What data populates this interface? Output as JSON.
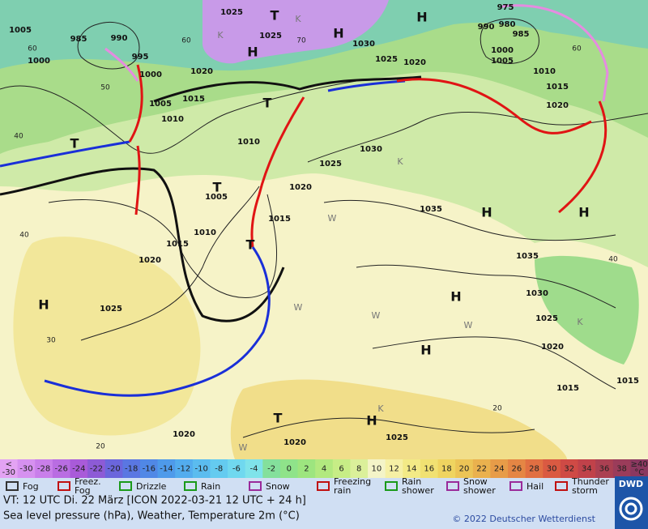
{
  "map": {
    "pressure_labels": [
      "1005",
      "985",
      "990",
      "995",
      "1000",
      "1000",
      "1005",
      "1010",
      "1015",
      "1020",
      "1025",
      "1025",
      "1030",
      "1025",
      "1020",
      "990",
      "980",
      "985",
      "975",
      "1000",
      "1005",
      "1010",
      "1015",
      "1020",
      "1030",
      "1025",
      "1020",
      "1015",
      "1010",
      "1005",
      "1010",
      "1015",
      "1020",
      "1025",
      "1035",
      "1035",
      "1030",
      "1025",
      "1020",
      "1015",
      "1015",
      "1025",
      "1020",
      "1020"
    ],
    "temperature_labels": [
      "40",
      "30",
      "20",
      "40",
      "50",
      "60",
      "60",
      "70",
      "60",
      "40",
      "20"
    ],
    "systems": [
      "H",
      "H",
      "H",
      "H",
      "H",
      "H",
      "H",
      "H",
      "H",
      "T",
      "T",
      "T",
      "T",
      "T",
      "T"
    ],
    "air_mass_letters": [
      "K",
      "K",
      "K",
      "K",
      "W",
      "W",
      "W",
      "W",
      "W",
      "K"
    ]
  },
  "colorbar": {
    "low_end": [
      "<",
      "-30"
    ],
    "values": [
      -30,
      -28,
      -26,
      -24,
      -22,
      -20,
      -18,
      -16,
      -14,
      -12,
      -10,
      -8,
      -6,
      -4,
      -2,
      0,
      2,
      4,
      6,
      8,
      10,
      12,
      14,
      16,
      18,
      20,
      22,
      24,
      26,
      28,
      30,
      32,
      34,
      36,
      38
    ],
    "high_end": [
      "≥40",
      "°C"
    ],
    "colors": [
      "#e3a3f3",
      "#d691f0",
      "#c97fea",
      "#b96de2",
      "#a95bd9",
      "#8d5bd6",
      "#6b66dc",
      "#5a77e2",
      "#5088e6",
      "#4e9aea",
      "#53acee",
      "#5bbcef",
      "#64cbf0",
      "#70d8ef",
      "#7fe3ea",
      "#84e09c",
      "#8fe38a",
      "#9de57f",
      "#b2e97f",
      "#c7ed86",
      "#dbf09a",
      "#f4f4c8",
      "#f6f0a5",
      "#f3ea86",
      "#f1e172",
      "#efd460",
      "#ecc456",
      "#eab14e",
      "#e79c48",
      "#e58644",
      "#e16f42",
      "#da5a42",
      "#cf4a45",
      "#c0424a",
      "#ab4052",
      "#9b3c5a",
      "#8b3860"
    ]
  },
  "legend": [
    "Fog",
    "Freez. Fog",
    "Drizzle",
    "Rain",
    "Snow",
    "Freezing rain",
    "Rain shower",
    "Snow shower",
    "Hail",
    "Thunder storm"
  ],
  "footer": {
    "valid_time": "VT: 12 UTC Di.  22 März [ICON 2022-03-21  12 UTC + 24 h]",
    "description": "Sea level pressure (hPa), Weather, Temperature 2m (°C)",
    "copyright": "© 2022 Deutscher Wetterdienst",
    "logo": "DWD"
  }
}
